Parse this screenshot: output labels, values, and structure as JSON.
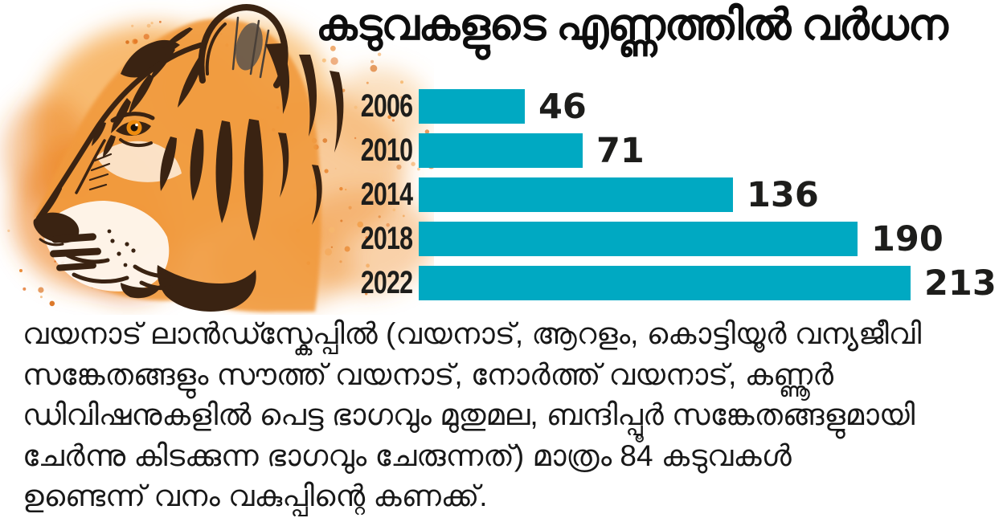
{
  "title": "കടുവകളുടെ എണ്ണത്തിൽ വർധന",
  "chart_data": {
    "type": "bar",
    "orientation": "horizontal",
    "title": "കടുവകളുടെ എണ്ണത്തിൽ വർധന",
    "categories": [
      "2006",
      "2010",
      "2014",
      "2018",
      "2022"
    ],
    "values": [
      46,
      71,
      136,
      190,
      213
    ],
    "xlabel": "",
    "ylabel": "",
    "xlim": [
      0,
      213
    ],
    "grid": false,
    "legend": false,
    "value_labels": "right-of-bar",
    "bar_color": "#00a9c2",
    "label_color": "#1d1d1b"
  },
  "body": {
    "lines": [
      "വയനാട് ലാൻഡ്സ്കേപ്പിൽ (വയനാട്, ആറളം, കൊട്ടിയൂർ വന്യജീവി",
      "സങ്കേതങ്ങളും സൗത്ത് വയനാട്, നോർത്ത് വയനാട്, കണ്ണൂർ",
      "ഡിവിഷനുകളിൽ പെട്ട ഭാഗവും മുതുമല, ബന്ദിപ്പൂർ സങ്കേതങ്ങളുമായി",
      "ചേർന്നു കിടക്കുന്ന ഭാഗവും ചേരുന്നത്) മാത്രം 84 കടുവകൾ",
      "ഉണ്ടെന്ന് വനം വകുപ്പിന്റെ കണക്ക്."
    ]
  },
  "illustration": {
    "name": "tiger-head-watercolor",
    "colors": {
      "wash_orange": "#f3a149",
      "deep_orange": "#e4731f",
      "stripe_brown": "#3a2312",
      "eye_orange": "#ee8c0e",
      "inner_ear_gray": "#5c544c"
    }
  }
}
